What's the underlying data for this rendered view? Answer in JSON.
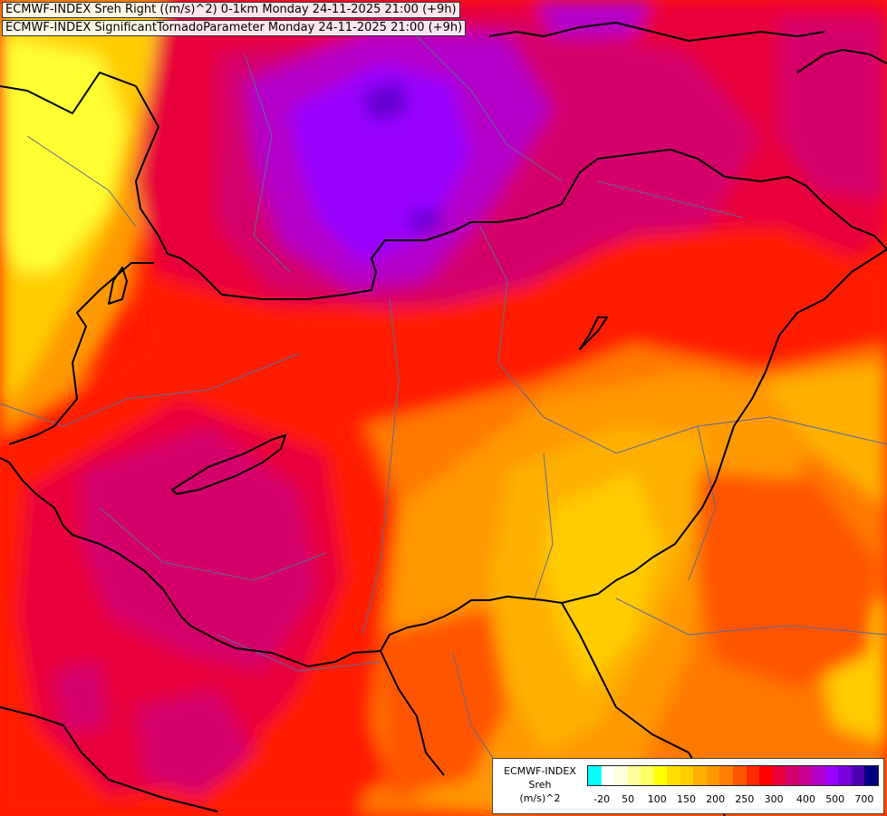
{
  "titles": {
    "line1": "ECMWF-INDEX Sreh Right ((m/s)^2) 0-1km Monday 24-11-2025 21:00 (+9h)",
    "line2": "ECMWF-INDEX SignificantTornadoParameter Monday 24-11-2025 21:00 (+9h)"
  },
  "legend": {
    "source": "ECMWF-INDEX",
    "variable": "Sreh",
    "unit": "(m/s)^2",
    "ticks": [
      "-20",
      "50",
      "100",
      "150",
      "200",
      "250",
      "300",
      "400",
      "500",
      "700"
    ],
    "colors": [
      "#00ffff",
      "#ffffff",
      "#ffffe0",
      "#ffff99",
      "#ffff66",
      "#ffff00",
      "#ffe000",
      "#ffcc00",
      "#ffb000",
      "#ff9900",
      "#ff7f00",
      "#ff5500",
      "#ff2a00",
      "#ff0000",
      "#e8003a",
      "#d4006a",
      "#c80090",
      "#b400c8",
      "#9900ff",
      "#7a00e0",
      "#4a00b0",
      "#000080"
    ]
  },
  "field_colors": {
    "yellow": "#ffff33",
    "gold": "#ffcc00",
    "amber": "#ffb000",
    "orange": "#ff9900",
    "dark_orange": "#ff7a00",
    "red_orange": "#ff5500",
    "red": "#ff1a00",
    "crimson": "#e8003a",
    "magenta": "#d4006a",
    "purple": "#b400c8",
    "violet": "#9900ff",
    "indigo": "#6000d0",
    "border": "#000000",
    "region_line": "#5c6a96"
  }
}
